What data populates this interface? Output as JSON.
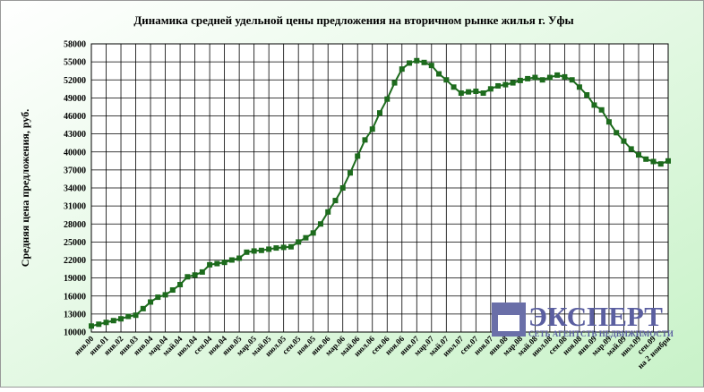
{
  "chart_data": {
    "type": "line",
    "title": "Динамика средней удельной цены предложения на вторичном рынке жилья г. Уфы",
    "y_label": "Средняя цена предложения, руб.",
    "categories": [
      "янв.00",
      null,
      "янв.01",
      null,
      "янв.02",
      null,
      "янв.03",
      null,
      "янв.04",
      null,
      "мар.04",
      null,
      "май.04",
      null,
      "июл.04",
      null,
      "сен.04",
      null,
      "ноя.04",
      null,
      "янв.05",
      null,
      "мар.05",
      null,
      "май.05",
      null,
      "июл.05",
      null,
      "сен.05",
      null,
      "ноя.05",
      null,
      "янв.06",
      null,
      "мар.06",
      null,
      "май.06",
      null,
      "июл.06",
      null,
      "сен.06",
      null,
      "ноя.06",
      null,
      "янв.07",
      null,
      "мар.07",
      null,
      "май.07",
      null,
      "июл.07",
      null,
      "сен.07",
      null,
      "ноя.07",
      null,
      "янв.08",
      null,
      "мар.08",
      null,
      "май.08",
      null,
      "июл.08",
      null,
      "сен.08",
      null,
      "ноя.08",
      null,
      "янв.09",
      null,
      "мар.09",
      null,
      "май.09",
      null,
      "июл.09",
      null,
      "сен.09",
      null,
      "на 2 ноября"
    ],
    "values": [
      11000,
      11300,
      11600,
      11900,
      12200,
      12600,
      12800,
      13900,
      15000,
      15800,
      16200,
      17000,
      17900,
      19200,
      19500,
      20000,
      21200,
      21400,
      21600,
      22000,
      22300,
      23300,
      23500,
      23600,
      23800,
      24000,
      24100,
      24200,
      25000,
      25700,
      26500,
      28000,
      30000,
      31900,
      34000,
      36500,
      39300,
      42000,
      43800,
      46500,
      48800,
      51500,
      53800,
      54800,
      55200,
      54900,
      54400,
      53000,
      52000,
      50800,
      49800,
      50000,
      50100,
      49800,
      50500,
      51000,
      51200,
      51500,
      51900,
      52200,
      52400,
      52000,
      52400,
      52800,
      52500,
      52000,
      50800,
      49500,
      47800,
      47000,
      45000,
      43200,
      41800,
      40500,
      39500,
      38800,
      38400,
      38000,
      38500
    ],
    "color": "#1d6b1d",
    "ylim": [
      10000,
      58000
    ],
    "yticks": [
      10000,
      13000,
      16000,
      19000,
      22000,
      25000,
      28000,
      31000,
      34000,
      37000,
      40000,
      43000,
      46000,
      49000,
      52000,
      55000,
      58000
    ],
    "grid": true,
    "logo": {
      "name": "ЭКСПЕРТ",
      "tagline": "СЕТЬ АГЕНТСТВ НЕДВИЖИМОСТИ"
    }
  }
}
